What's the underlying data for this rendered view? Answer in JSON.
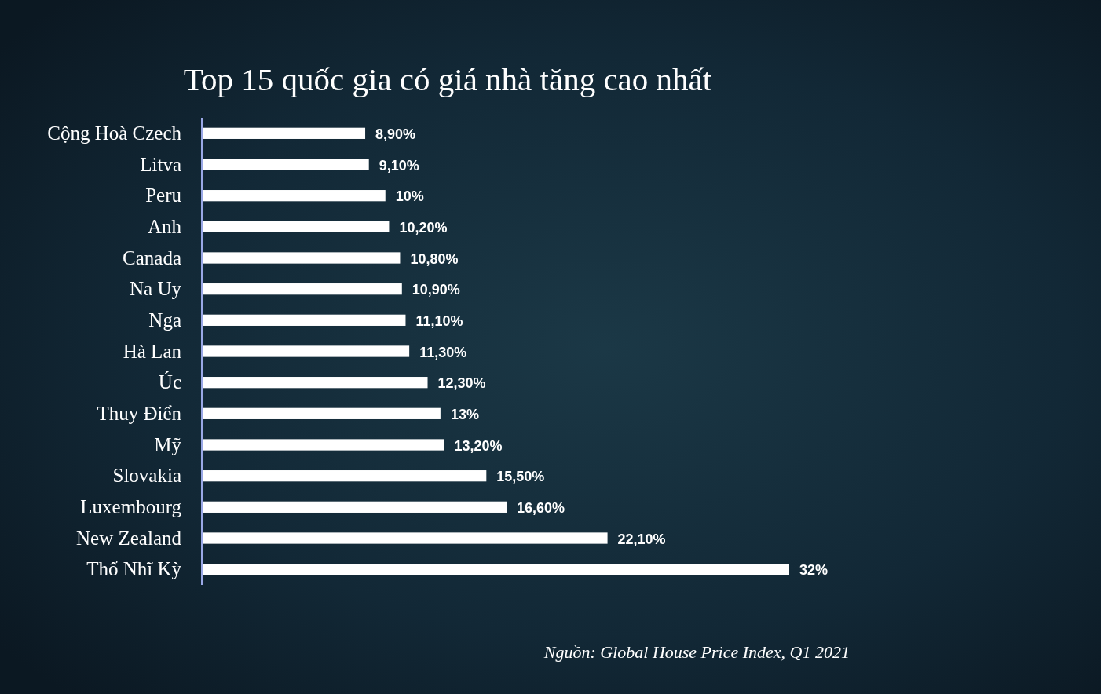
{
  "chart_data": {
    "type": "bar",
    "orientation": "horizontal",
    "title": "Top 15 quốc gia có giá nhà tăng cao nhất",
    "categories": [
      "Cộng Hoà Czech",
      "Litva",
      "Peru",
      "Anh",
      "Canada",
      "Na Uy",
      "Nga",
      "Hà Lan",
      "Úc",
      "Thuy Điển",
      "Mỹ",
      "Slovakia",
      "Luxembourg",
      "New Zealand",
      "Thổ Nhĩ Kỳ"
    ],
    "values": [
      8.9,
      9.1,
      10,
      10.2,
      10.8,
      10.9,
      11.1,
      11.3,
      12.3,
      13,
      13.2,
      15.5,
      16.6,
      22.1,
      32
    ],
    "color": "#ffffff",
    "value_labels": [
      "8,90%",
      "9,10%",
      "10%",
      "10,20%",
      "10,80%",
      "10,90%",
      "11,10%",
      "11,30%",
      "12,30%",
      "13%",
      "13,20%",
      "15,50%",
      "16,60%",
      "22,10%",
      "32%"
    ],
    "annotations": [
      "Nguồn: Global House Price Index, Q1 2021"
    ]
  }
}
